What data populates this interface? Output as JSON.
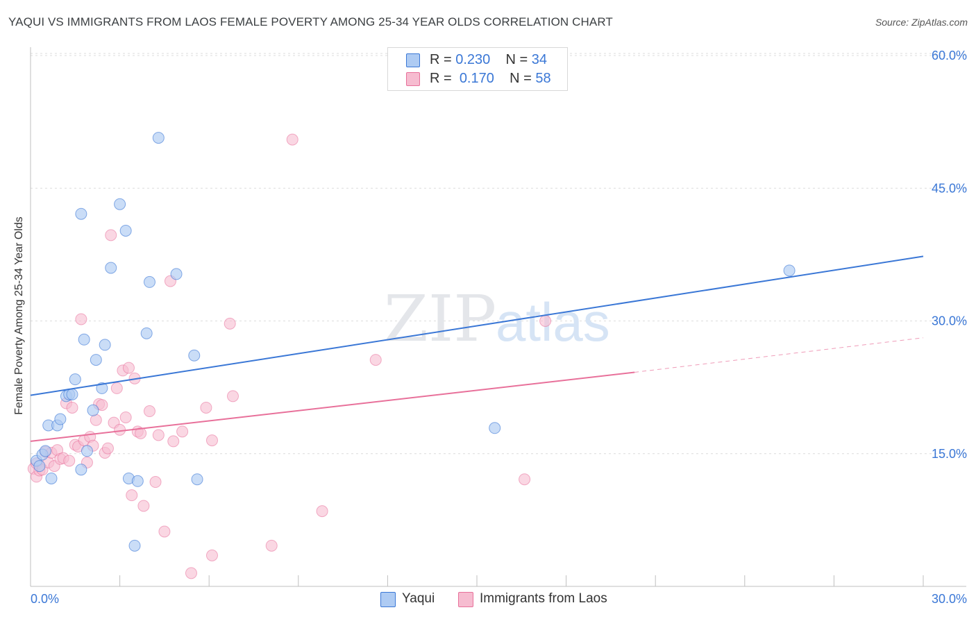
{
  "title": "YAQUI VS IMMIGRANTS FROM LAOS FEMALE POVERTY AMONG 25-34 YEAR OLDS CORRELATION CHART",
  "source": "Source: ZipAtlas.com",
  "watermark": {
    "zip": "ZIP",
    "atlas": "atlas"
  },
  "legend": {
    "rows": [
      {
        "r_label": "R =",
        "r_value": "0.230",
        "n_label": "N =",
        "n_value": "34"
      },
      {
        "r_label": "R =",
        "r_value": "0.170",
        "n_label": "N =",
        "n_value": "58"
      }
    ]
  },
  "bottom_legend": [
    "Yaqui",
    "Immigrants from Laos"
  ],
  "chart_data": {
    "type": "scatter",
    "ylabel": "Female Poverty Among 25-34 Year Olds",
    "x_tick_labels": [
      "0.0%",
      "30.0%"
    ],
    "y_tick_labels": [
      "15.0%",
      "30.0%",
      "45.0%",
      "60.0%"
    ],
    "xlim": [
      0,
      30
    ],
    "ylim": [
      0,
      60
    ],
    "grid": true,
    "colors": {
      "yaqui": "#3a77d6",
      "laos": "#e8709a",
      "yaqui_fill": "#aecbf3",
      "laos_fill": "#f6bcd0",
      "tick_label": "#3a77d6"
    },
    "series": [
      {
        "name": "Yaqui",
        "trend": {
          "x": [
            0,
            30
          ],
          "y": [
            21.6,
            37.3
          ]
        },
        "points": [
          [
            0.2,
            14.2
          ],
          [
            0.3,
            13.6
          ],
          [
            0.4,
            14.9
          ],
          [
            0.5,
            15.3
          ],
          [
            0.6,
            18.2
          ],
          [
            0.7,
            12.2
          ],
          [
            0.9,
            18.2
          ],
          [
            1.0,
            18.9
          ],
          [
            1.2,
            21.5
          ],
          [
            1.3,
            21.7
          ],
          [
            1.4,
            21.7
          ],
          [
            1.5,
            23.4
          ],
          [
            1.7,
            13.2
          ],
          [
            1.8,
            27.9
          ],
          [
            1.9,
            15.3
          ],
          [
            2.1,
            19.9
          ],
          [
            2.2,
            25.6
          ],
          [
            2.4,
            22.4
          ],
          [
            2.5,
            27.3
          ],
          [
            2.7,
            36.0
          ],
          [
            3.0,
            43.2
          ],
          [
            3.2,
            40.2
          ],
          [
            3.3,
            12.2
          ],
          [
            3.5,
            4.6
          ],
          [
            3.6,
            11.9
          ],
          [
            3.9,
            28.6
          ],
          [
            4.0,
            34.4
          ],
          [
            4.3,
            50.7
          ],
          [
            4.9,
            35.3
          ],
          [
            5.5,
            26.1
          ],
          [
            5.6,
            12.1
          ],
          [
            15.6,
            17.9
          ],
          [
            25.5,
            35.7
          ],
          [
            1.7,
            42.1
          ]
        ]
      },
      {
        "name": "Immigrants from Laos",
        "trend": {
          "x": [
            0,
            20.3
          ],
          "y": [
            16.4,
            24.2
          ]
        },
        "trend_dashed": {
          "x": [
            20.3,
            30
          ],
          "y": [
            24.2,
            28.1
          ]
        },
        "points": [
          [
            0.1,
            13.3
          ],
          [
            0.2,
            12.4
          ],
          [
            0.2,
            13.9
          ],
          [
            0.3,
            13.1
          ],
          [
            0.4,
            13.2
          ],
          [
            0.5,
            15.2
          ],
          [
            0.6,
            14.0
          ],
          [
            0.7,
            15.1
          ],
          [
            0.8,
            13.6
          ],
          [
            0.9,
            15.4
          ],
          [
            1.0,
            14.4
          ],
          [
            1.1,
            14.5
          ],
          [
            1.2,
            20.7
          ],
          [
            1.3,
            14.2
          ],
          [
            1.4,
            20.2
          ],
          [
            1.5,
            16.0
          ],
          [
            1.6,
            15.8
          ],
          [
            1.7,
            30.2
          ],
          [
            1.8,
            16.5
          ],
          [
            1.9,
            14.0
          ],
          [
            2.0,
            16.9
          ],
          [
            2.1,
            15.9
          ],
          [
            2.2,
            18.8
          ],
          [
            2.3,
            20.6
          ],
          [
            2.4,
            20.5
          ],
          [
            2.5,
            15.1
          ],
          [
            2.6,
            15.6
          ],
          [
            2.7,
            39.7
          ],
          [
            2.8,
            18.5
          ],
          [
            2.9,
            22.4
          ],
          [
            3.0,
            17.7
          ],
          [
            3.1,
            24.4
          ],
          [
            3.2,
            19.1
          ],
          [
            3.3,
            24.7
          ],
          [
            3.4,
            10.3
          ],
          [
            3.5,
            23.5
          ],
          [
            3.6,
            17.5
          ],
          [
            3.7,
            17.3
          ],
          [
            3.8,
            9.1
          ],
          [
            4.0,
            19.8
          ],
          [
            4.2,
            11.8
          ],
          [
            4.3,
            17.1
          ],
          [
            4.5,
            6.2
          ],
          [
            4.7,
            34.5
          ],
          [
            4.8,
            16.4
          ],
          [
            5.1,
            17.5
          ],
          [
            5.4,
            1.5
          ],
          [
            5.9,
            20.2
          ],
          [
            6.1,
            3.5
          ],
          [
            6.1,
            16.5
          ],
          [
            6.7,
            29.7
          ],
          [
            6.8,
            21.5
          ],
          [
            8.1,
            4.6
          ],
          [
            8.8,
            50.5
          ],
          [
            9.8,
            8.5
          ],
          [
            11.6,
            25.6
          ],
          [
            16.6,
            12.1
          ],
          [
            17.3,
            30.0
          ]
        ]
      }
    ]
  }
}
